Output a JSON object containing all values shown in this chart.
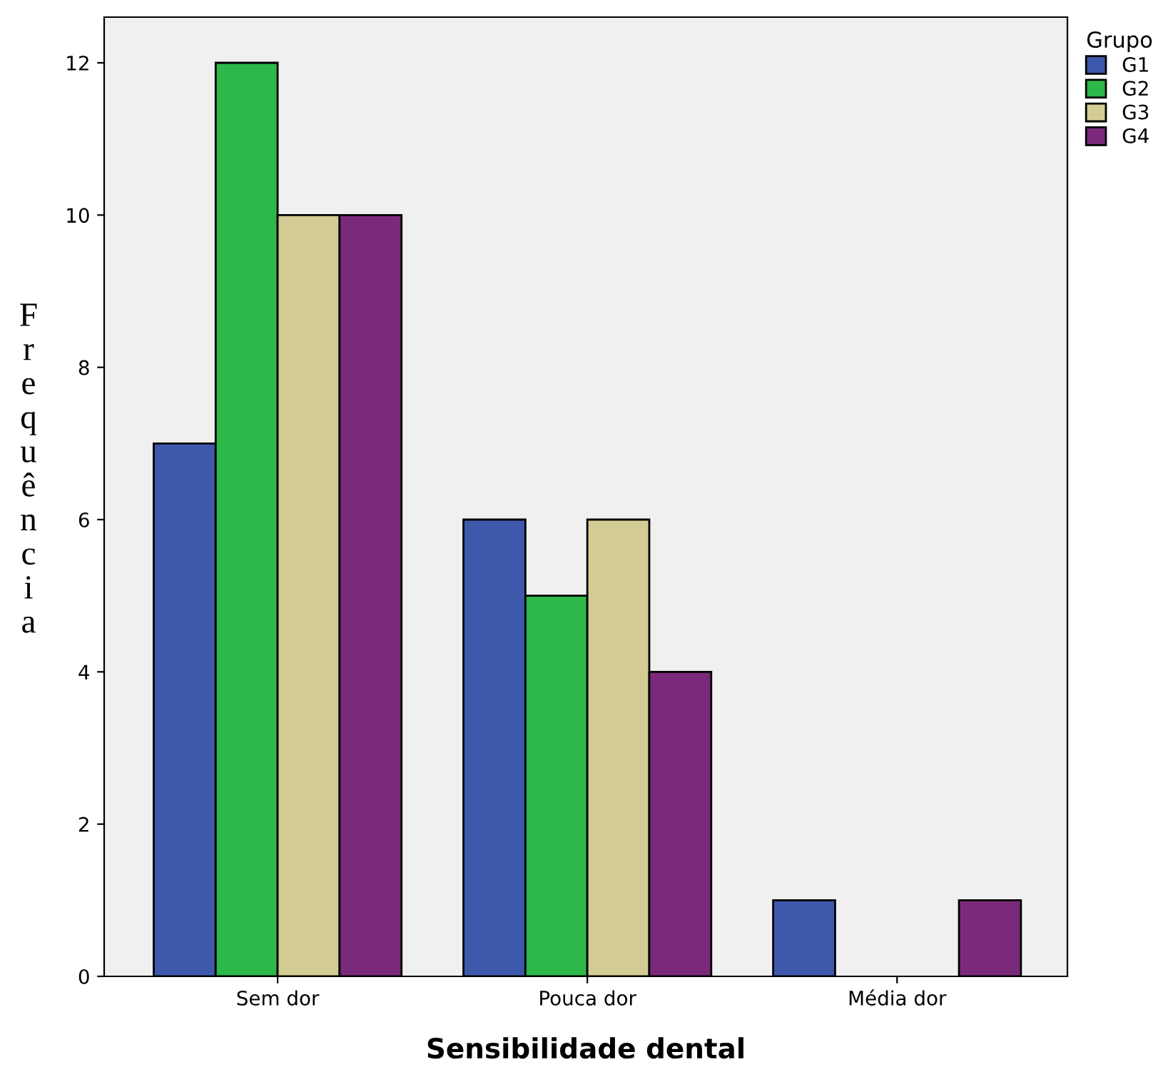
{
  "chart_data": {
    "type": "bar",
    "xlabel": "Sensibilidade dental",
    "ylabel": "Frequência",
    "legend_title": "Grupo",
    "categories": [
      "Sem dor",
      "Pouca dor",
      "Média dor"
    ],
    "series": [
      {
        "name": "G1",
        "color": "#3e58ac",
        "values": [
          7,
          6,
          1
        ]
      },
      {
        "name": "G2",
        "color": "#2db84a",
        "values": [
          12,
          5,
          0
        ]
      },
      {
        "name": "G3",
        "color": "#d4cc95",
        "values": [
          10,
          6,
          0
        ]
      },
      {
        "name": "G4",
        "color": "#7b2a7b",
        "values": [
          10,
          4,
          1
        ]
      }
    ],
    "ylim": [
      0,
      12.6
    ],
    "yticks": [
      0,
      2,
      4,
      6,
      8,
      10,
      12
    ],
    "grid": false,
    "legend": "top right"
  }
}
